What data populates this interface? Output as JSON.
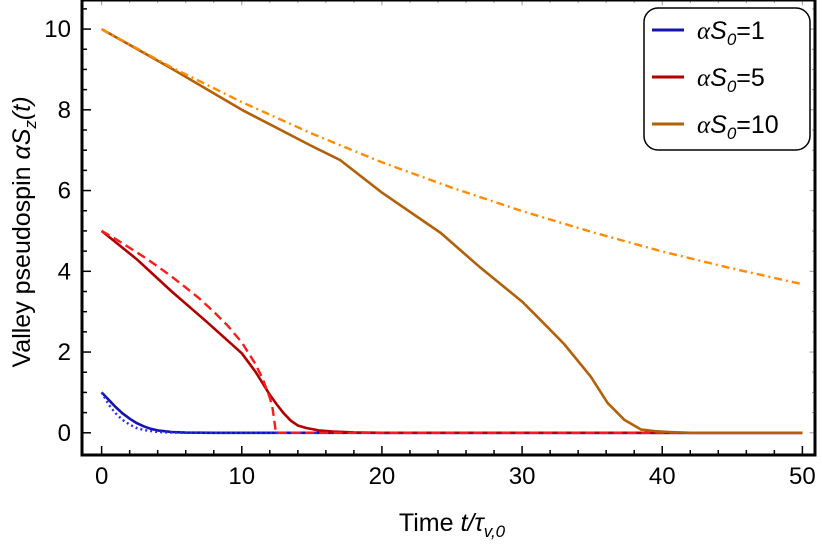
{
  "chart_data": {
    "type": "line",
    "title": "",
    "xlabel": "Time t/τ_{v,0}",
    "xlabel_parts": {
      "main": "Time ",
      "var": "t/τ",
      "sub": "v,0"
    },
    "ylabel": "Valley pseudospin αS_z(t)",
    "ylabel_parts": {
      "main": "Valley pseudospin ",
      "var": "αS",
      "sub": "z",
      "tail": "(t)"
    },
    "xlim": [
      -1.4,
      50.9
    ],
    "ylim": [
      -0.55,
      10.72
    ],
    "xticks": [
      0,
      10,
      20,
      30,
      40,
      50
    ],
    "yticks": [
      0,
      2,
      4,
      6,
      8,
      10
    ],
    "grid": false,
    "legend_placement": "top-right",
    "series": [
      {
        "name": "αS₀=1",
        "legend_parts": {
          "a": "αS",
          "sub": "0",
          "b": "=1"
        },
        "color": "#1414b0",
        "style": "solid",
        "in_legend": true,
        "x": [
          0,
          0.5,
          1,
          1.5,
          2,
          2.5,
          3,
          3.5,
          4,
          5,
          6,
          8,
          50
        ],
        "y": [
          1.0,
          0.82,
          0.64,
          0.48,
          0.35,
          0.24,
          0.16,
          0.1,
          0.06,
          0.02,
          0.005,
          0,
          0
        ]
      },
      {
        "color": "#2a2aff",
        "style": "dotted",
        "in_legend": false,
        "x": [
          0,
          0.5,
          1,
          1.5,
          2,
          2.5,
          3,
          4,
          5,
          6,
          8,
          50
        ],
        "y": [
          1.0,
          0.7,
          0.48,
          0.32,
          0.2,
          0.12,
          0.07,
          0.02,
          0.005,
          0,
          0,
          0
        ]
      },
      {
        "name": "αS₀=5",
        "legend_parts": {
          "a": "αS",
          "sub": "0",
          "b": "=5"
        },
        "color": "#b00000",
        "style": "solid",
        "in_legend": true,
        "x": [
          0,
          2.5,
          5,
          7.5,
          10,
          11,
          12,
          12.5,
          13,
          13.5,
          14,
          14.6,
          15.5,
          16.5,
          18,
          20,
          50
        ],
        "y": [
          5.0,
          4.3,
          3.5,
          2.75,
          1.97,
          1.5,
          0.94,
          0.7,
          0.48,
          0.3,
          0.18,
          0.12,
          0.06,
          0.03,
          0.01,
          0,
          0
        ]
      },
      {
        "color": "#ff1a1a",
        "style": "dashed",
        "in_legend": false,
        "x": [
          0,
          1,
          2,
          3,
          4,
          5,
          6,
          7,
          8,
          9,
          10,
          11,
          11.5,
          12,
          12.2,
          12.4,
          12.4,
          50
        ],
        "y": [
          5.0,
          4.8,
          4.58,
          4.36,
          4.12,
          3.87,
          3.6,
          3.32,
          3.0,
          2.65,
          2.24,
          1.69,
          1.33,
          0.87,
          0.6,
          0.1,
          0,
          0
        ]
      },
      {
        "name": "αS₀=10",
        "legend_parts": {
          "a": "αS",
          "sub": "0",
          "b": "=10"
        },
        "color": "#b3600a",
        "style": "solid",
        "in_legend": true,
        "x": [
          0,
          5,
          10,
          15,
          17,
          20,
          24.2,
          27,
          30,
          31.3,
          33,
          34.9,
          36.1,
          37.3,
          38.5,
          39.5,
          40.5,
          42,
          50
        ],
        "y": [
          10.0,
          9.02,
          8.0,
          7.1,
          6.76,
          5.95,
          4.95,
          4.1,
          3.25,
          2.8,
          2.2,
          1.39,
          0.74,
          0.32,
          0.08,
          0.04,
          0.02,
          0,
          0
        ]
      },
      {
        "color": "#ff8c00",
        "style": "dashdot",
        "in_legend": false,
        "x": [
          0,
          5,
          10,
          15,
          20,
          25,
          30,
          35,
          40,
          45,
          50
        ],
        "y": [
          10.0,
          9.05,
          8.19,
          7.41,
          6.7,
          6.07,
          5.49,
          4.97,
          4.49,
          4.07,
          3.68
        ]
      }
    ]
  }
}
